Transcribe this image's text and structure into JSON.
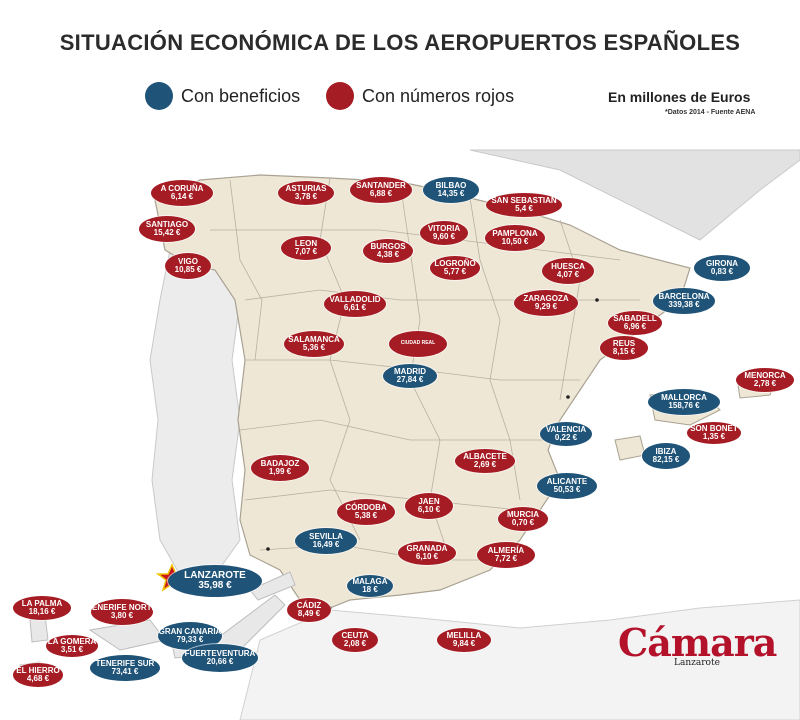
{
  "title": "SITUACIÓN ECONÓMICA DE LOS AEROPUERTOS ESPAÑOLES",
  "legend": [
    {
      "label": "Con beneficios",
      "color": "#1f5378"
    },
    {
      "label": "Con números rojos",
      "color": "#a51c24"
    }
  ],
  "units": "En millones de Euros",
  "source": "*Datos 2014 - Fuente AENA",
  "colors": {
    "profit": "#1f5378",
    "loss": "#a51c24",
    "land": "#efe7d6",
    "border": "#b7b0a2",
    "outside": "#dedede"
  },
  "airports": [
    {
      "name": "A CORUÑA",
      "value": "6,14 €",
      "status": "loss"
    },
    {
      "name": "ASTURIAS",
      "value": "3,78 €",
      "status": "loss"
    },
    {
      "name": "SANTANDER",
      "value": "6,88 €",
      "status": "loss"
    },
    {
      "name": "BILBAO",
      "value": "14,35 €",
      "status": "profit"
    },
    {
      "name": "SAN SEBASTIAN",
      "value": "5,4 €",
      "status": "loss"
    },
    {
      "name": "SANTIAGO",
      "value": "15,42 €",
      "status": "loss"
    },
    {
      "name": "VITORIA",
      "value": "9,60 €",
      "status": "loss"
    },
    {
      "name": "PAMPLONA",
      "value": "10,50 €",
      "status": "loss"
    },
    {
      "name": "LEON",
      "value": "7,07 €",
      "status": "loss"
    },
    {
      "name": "BURGOS",
      "value": "4,38 €",
      "status": "loss"
    },
    {
      "name": "LOGROÑO",
      "value": "5,77 €",
      "status": "loss"
    },
    {
      "name": "VIGO",
      "value": "10,85 €",
      "status": "loss"
    },
    {
      "name": "HUESCA",
      "value": "4,07 €",
      "status": "loss"
    },
    {
      "name": "GIRONA",
      "value": "0,83 €",
      "status": "profit"
    },
    {
      "name": "BARCELONA",
      "value": "339,38 €",
      "status": "profit"
    },
    {
      "name": "VALLADOLID",
      "value": "6,61 €",
      "status": "loss"
    },
    {
      "name": "ZARAGOZA",
      "value": "9,29 €",
      "status": "loss"
    },
    {
      "name": "SABADELL",
      "value": "6,96 €",
      "status": "loss"
    },
    {
      "name": "SALAMANCA",
      "value": "5,36 €",
      "status": "loss"
    },
    {
      "name": "CIUDAD REAL",
      "value": "",
      "status": "loss"
    },
    {
      "name": "REUS",
      "value": "8,15 €",
      "status": "loss"
    },
    {
      "name": "MADRID",
      "value": "27,84 €",
      "status": "profit"
    },
    {
      "name": "MENORCA",
      "value": "2,78 €",
      "status": "loss"
    },
    {
      "name": "MALLORCA",
      "value": "158,76 €",
      "status": "profit"
    },
    {
      "name": "SON BONET",
      "value": "1,35 €",
      "status": "loss"
    },
    {
      "name": "VALENCIA",
      "value": "0,22 €",
      "status": "profit"
    },
    {
      "name": "IBIZA",
      "value": "82,15 €",
      "status": "profit"
    },
    {
      "name": "BADAJOZ",
      "value": "1,99 €",
      "status": "loss"
    },
    {
      "name": "ALBACETE",
      "value": "2,69 €",
      "status": "loss"
    },
    {
      "name": "ALICANTE",
      "value": "50,53 €",
      "status": "profit"
    },
    {
      "name": "CÓRDOBA",
      "value": "5,38 €",
      "status": "loss"
    },
    {
      "name": "JAEN",
      "value": "6,10 €",
      "status": "loss"
    },
    {
      "name": "MURCIA",
      "value": "0,70 €",
      "status": "loss"
    },
    {
      "name": "SEVILLA",
      "value": "16,49 €",
      "status": "profit"
    },
    {
      "name": "GRANADA",
      "value": "6,10 €",
      "status": "loss"
    },
    {
      "name": "ALMERÍA",
      "value": "7,72 €",
      "status": "loss"
    },
    {
      "name": "LANZAROTE",
      "value": "35,98 €",
      "status": "profit"
    },
    {
      "name": "MALAGA",
      "value": "18 €",
      "status": "profit"
    },
    {
      "name": "LA PALMA",
      "value": "18,16 €",
      "status": "loss"
    },
    {
      "name": "TENERIFE NORTE",
      "value": "3,80 €",
      "status": "loss"
    },
    {
      "name": "CÁDIZ",
      "value": "8,49 €",
      "status": "loss"
    },
    {
      "name": "GRAN CANARIA",
      "value": "79,33 €",
      "status": "profit"
    },
    {
      "name": "CEUTA",
      "value": "2,08 €",
      "status": "loss"
    },
    {
      "name": "MELILLA",
      "value": "9,84 €",
      "status": "loss"
    },
    {
      "name": "LA GOMERA",
      "value": "3,51 €",
      "status": "loss"
    },
    {
      "name": "TENERIFE SUR",
      "value": "73,41 €",
      "status": "profit"
    },
    {
      "name": "FUERTEVENTURA",
      "value": "20,66 €",
      "status": "profit"
    },
    {
      "name": "EL HIERRO",
      "value": "4,68 €",
      "status": "loss"
    }
  ],
  "logo": {
    "word": "Cámara",
    "sub": "Lanzarote"
  }
}
